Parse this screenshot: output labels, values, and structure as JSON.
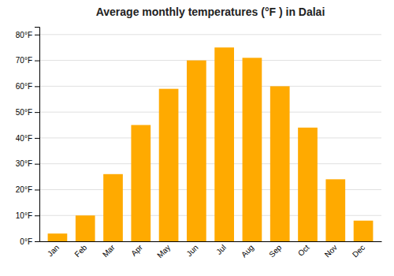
{
  "chart_data": {
    "type": "bar",
    "title": "Average monthly temperatures (°F ) in Dalai",
    "categories": [
      "Jan",
      "Feb",
      "Mar",
      "Apr",
      "May",
      "Jun",
      "Jul",
      "Aug",
      "Sep",
      "Oct",
      "Nov",
      "Dec"
    ],
    "values": [
      3,
      10,
      26,
      45,
      59,
      70,
      75,
      71,
      60,
      44,
      24,
      8
    ],
    "color": "#FFAA00",
    "ylim": [
      0,
      83
    ],
    "yticks": [
      {
        "value": 0,
        "label": "0°F"
      },
      {
        "value": 10,
        "label": "10°F"
      },
      {
        "value": 20,
        "label": "20°F"
      },
      {
        "value": 30,
        "label": "30°F"
      },
      {
        "value": 40,
        "label": "40°F"
      },
      {
        "value": 50,
        "label": "50°F"
      },
      {
        "value": 60,
        "label": "60°F"
      },
      {
        "value": 70,
        "label": "70°F"
      },
      {
        "value": 80,
        "label": "80°F"
      }
    ],
    "grid": true
  }
}
